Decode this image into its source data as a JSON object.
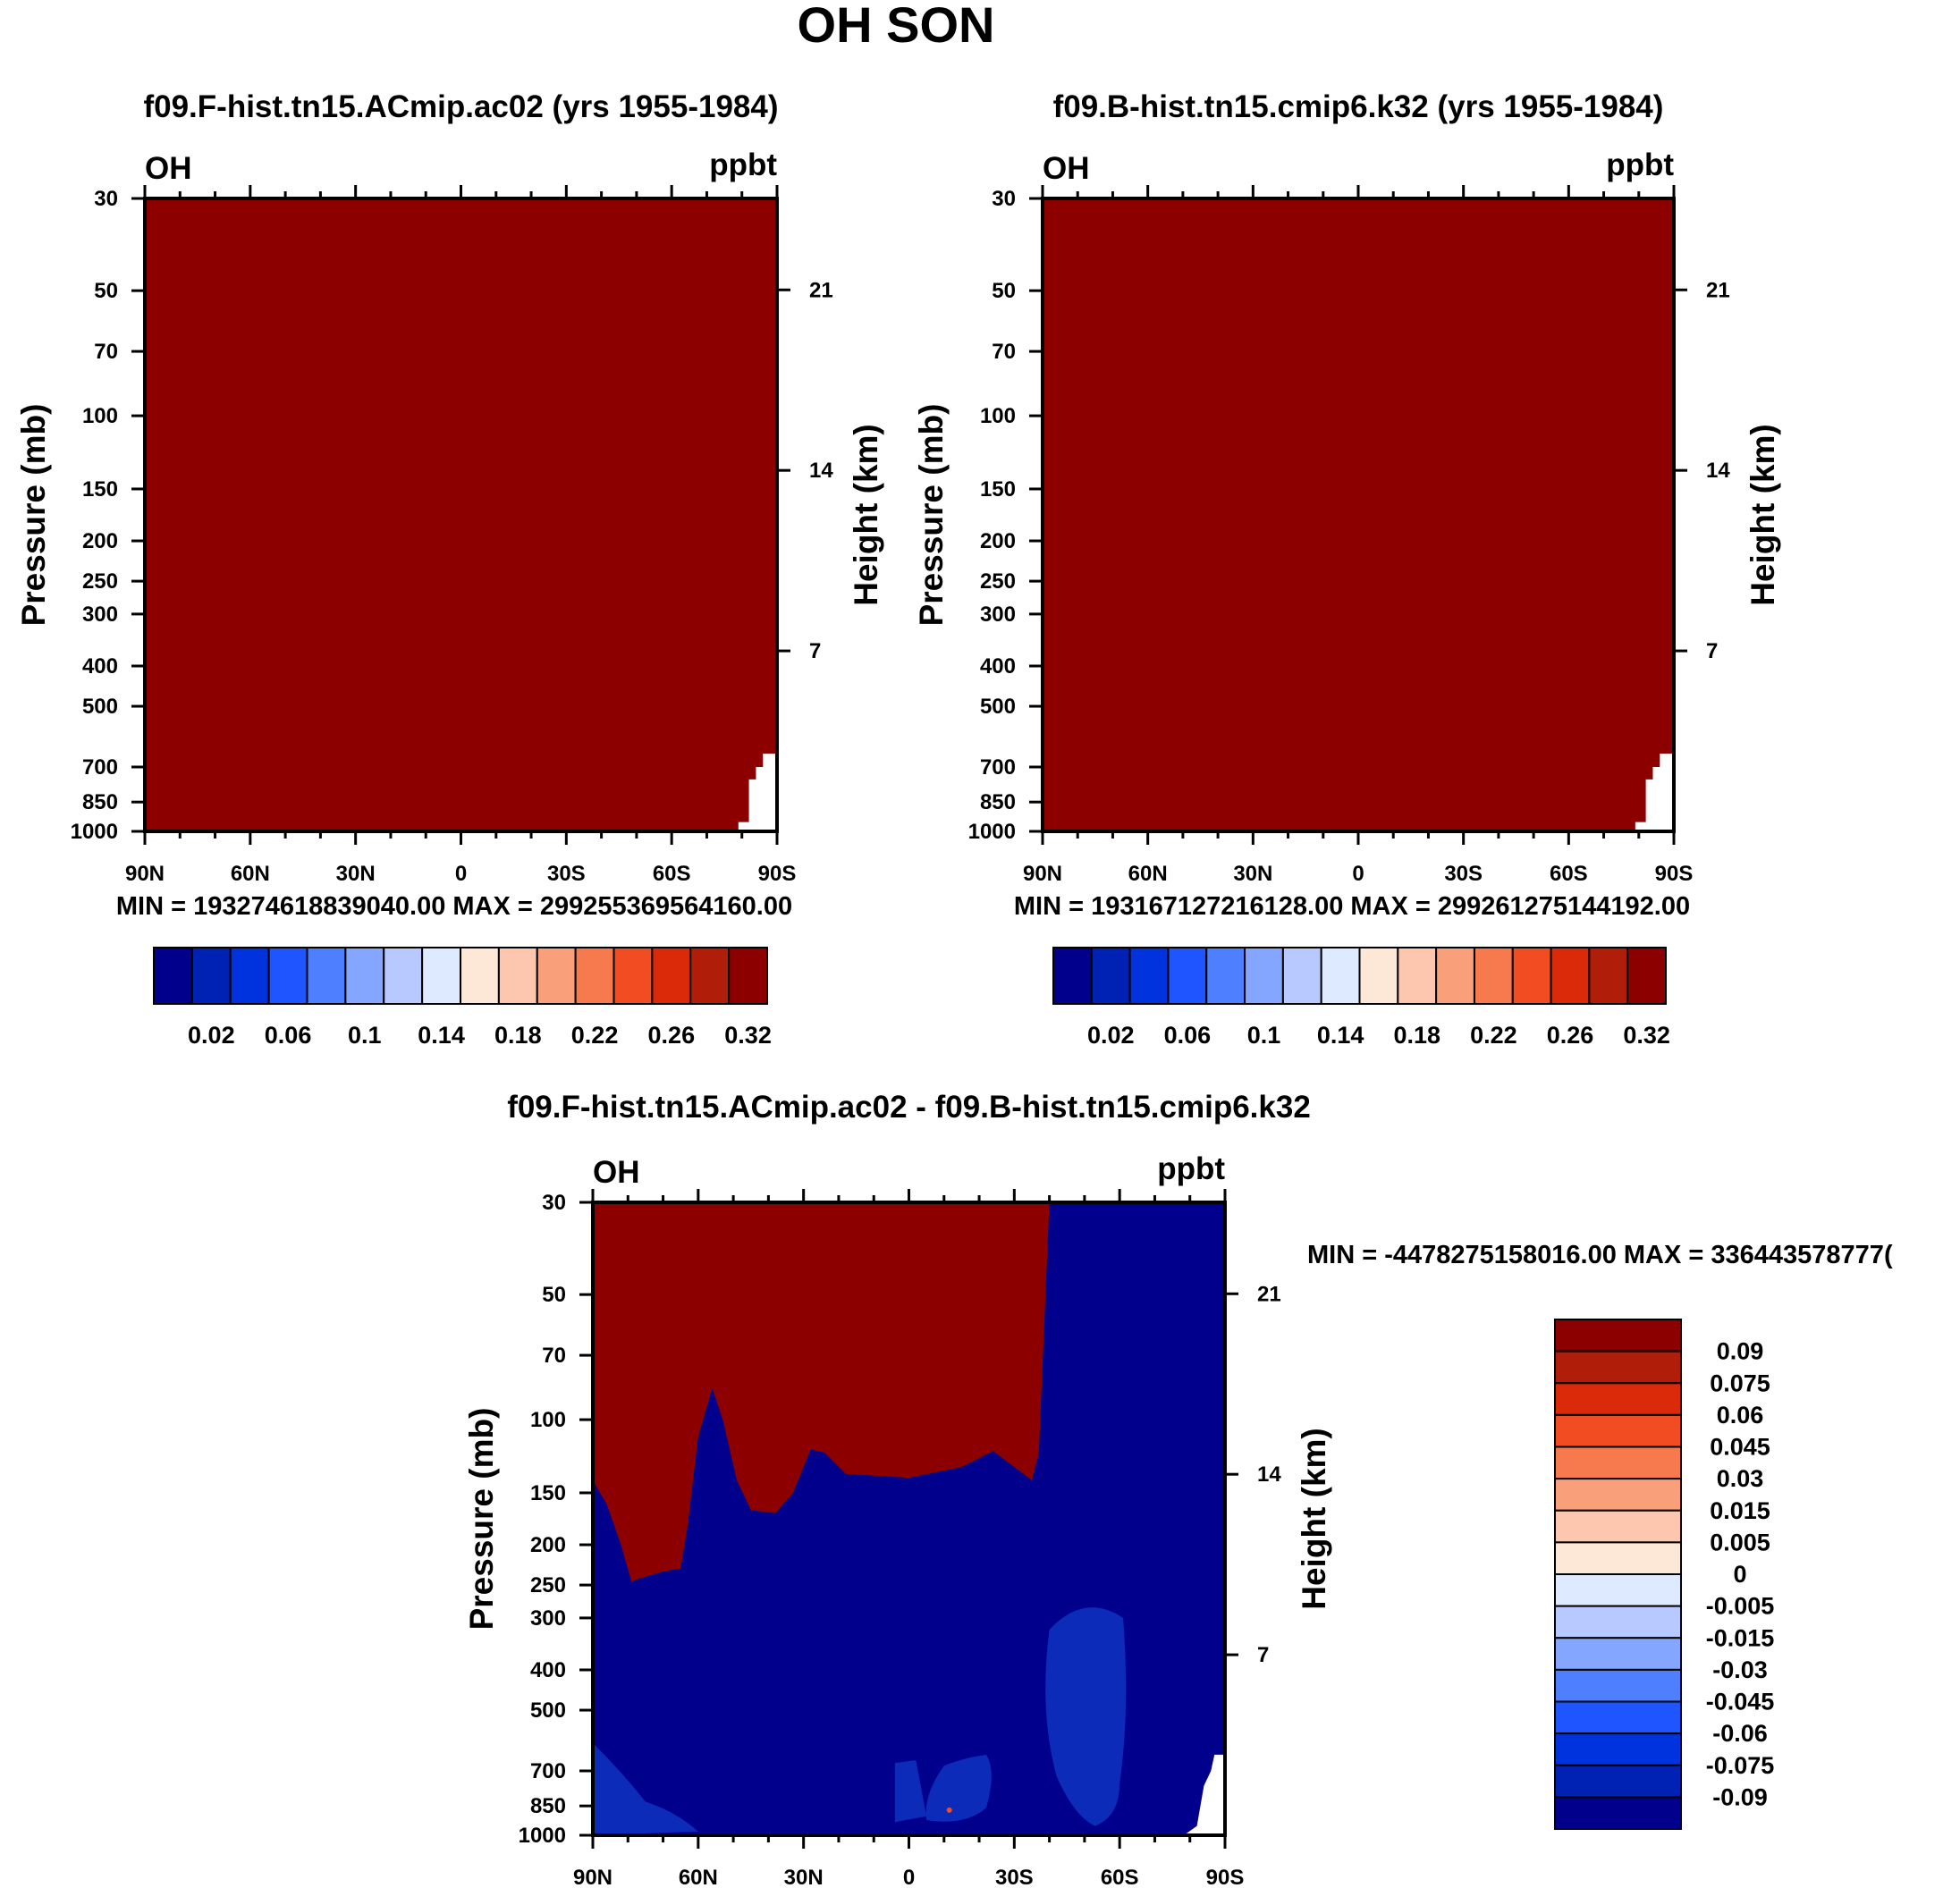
{
  "figure": {
    "title": "OH SON"
  },
  "colors": {
    "seq_palette": [
      "#00008c",
      "#0022b4",
      "#0033dd",
      "#1e55ff",
      "#4d7fff",
      "#85a6ff",
      "#b8c9ff",
      "#ddeaff",
      "#fde8d8",
      "#fcc7ae",
      "#f9a07a",
      "#f77a4e",
      "#f24d22",
      "#db2a0a",
      "#b01e0a",
      "#8c0000"
    ],
    "diff_palette": [
      "#00008c",
      "#0022b4",
      "#0033dd",
      "#1e55ff",
      "#4d7fff",
      "#85a6ff",
      "#b8c9ff",
      "#ddeaff",
      "#fde8d8",
      "#fcc7ae",
      "#f9a07a",
      "#f77a4e",
      "#f24d22",
      "#db2a0a",
      "#b01e0a",
      "#8c0000"
    ],
    "dark_red": "#8c0000",
    "dark_blue": "#00008c",
    "mid_blue": "#0b2bb8"
  },
  "chart_data": [
    {
      "type": "heatmap",
      "id": "panel-a",
      "title": "f09.F-hist.tn15.ACmip.ac02 (yrs 1955-1984)",
      "left_label": "OH",
      "right_label": "ppbt",
      "xlabel": "",
      "ylabel": "Pressure (mb)",
      "y2label": "Height (km)",
      "x_ticks": [
        "90N",
        "60N",
        "30N",
        "0",
        "30S",
        "60S",
        "90S"
      ],
      "y_ticks": [
        30,
        50,
        70,
        100,
        150,
        200,
        250,
        300,
        400,
        500,
        700,
        850,
        1000
      ],
      "y2_ticks": [
        21,
        14,
        7
      ],
      "stats": "MIN = 193274618839040.00   MAX = 299255369564160.00",
      "colorbar_labels": [
        "0.02",
        "0.06",
        "0.1",
        "0.14",
        "0.18",
        "0.22",
        "0.26",
        "0.32"
      ],
      "field": "uniformly above top contour (0.32) except missing data near surface at 60S-90S"
    },
    {
      "type": "heatmap",
      "id": "panel-b",
      "title": "f09.B-hist.tn15.cmip6.k32 (yrs 1955-1984)",
      "left_label": "OH",
      "right_label": "ppbt",
      "xlabel": "",
      "ylabel": "Pressure (mb)",
      "y2label": "Height (km)",
      "x_ticks": [
        "90N",
        "60N",
        "30N",
        "0",
        "30S",
        "60S",
        "90S"
      ],
      "y_ticks": [
        30,
        50,
        70,
        100,
        150,
        200,
        250,
        300,
        400,
        500,
        700,
        850,
        1000
      ],
      "y2_ticks": [
        21,
        14,
        7
      ],
      "stats": "MIN = 193167127216128.00   MAX = 299261275144192.00",
      "colorbar_labels": [
        "0.02",
        "0.06",
        "0.1",
        "0.14",
        "0.18",
        "0.22",
        "0.26",
        "0.32"
      ],
      "field": "uniformly above top contour (0.32) except missing data near surface at 60S-90S"
    },
    {
      "type": "heatmap",
      "id": "panel-diff",
      "title": "f09.F-hist.tn15.ACmip.ac02 - f09.B-hist.tn15.cmip6.k32",
      "left_label": "OH",
      "right_label": "ppbt",
      "xlabel": "",
      "ylabel": "Pressure (mb)",
      "y2label": "Height (km)",
      "x_ticks": [
        "90N",
        "60N",
        "30N",
        "0",
        "30S",
        "60S",
        "90S"
      ],
      "y_ticks": [
        30,
        50,
        70,
        100,
        150,
        200,
        250,
        300,
        400,
        500,
        700,
        850,
        1000
      ],
      "y2_ticks": [
        21,
        14,
        7
      ],
      "stats": "MIN = -4478275158016.00   MAX = 336443578777(",
      "colorbar_labels": [
        "0.09",
        "0.075",
        "0.06",
        "0.045",
        "0.03",
        "0.015",
        "0.005",
        "0",
        "-0.005",
        "-0.015",
        "-0.03",
        "-0.045",
        "-0.06",
        "-0.075",
        "-0.09"
      ],
      "field": "positive (>0.09) above ~140 mb from 90N to ~35S, negative (<-0.09) elsewhere; weaker negative patches near surface"
    }
  ]
}
